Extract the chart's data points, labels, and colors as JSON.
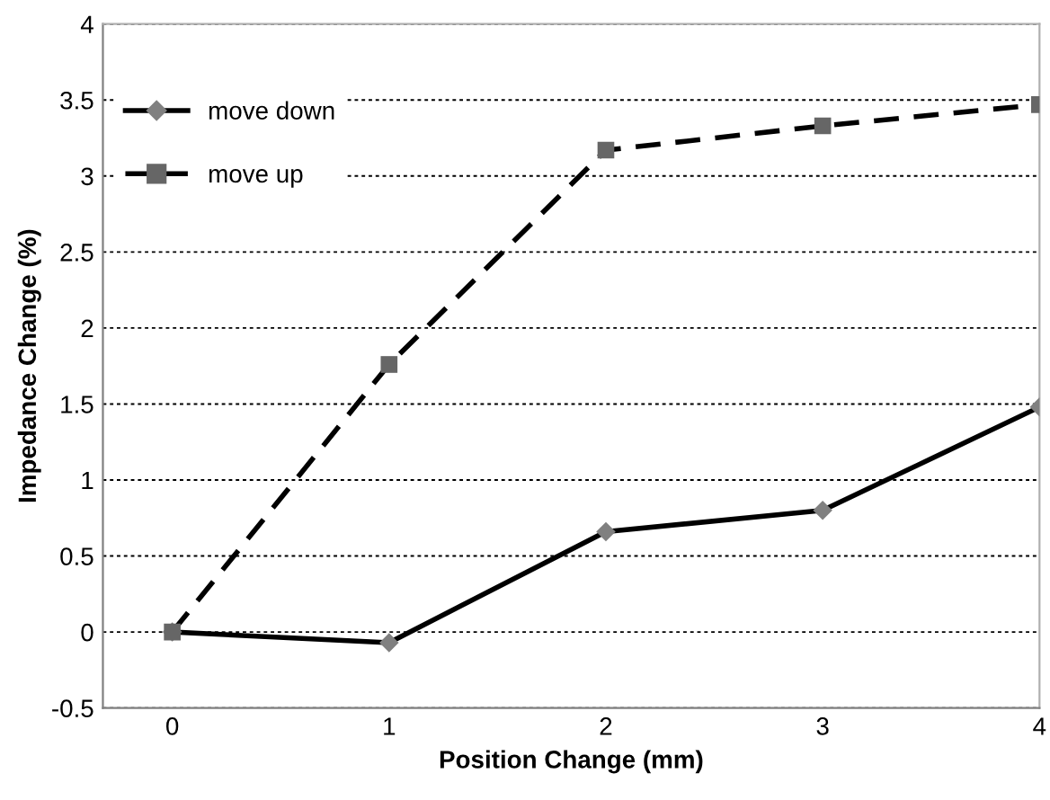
{
  "chart_data": {
    "type": "line",
    "xlabel": "Position Change (mm)",
    "ylabel": "Impedance Change (%)",
    "x": [
      0,
      1,
      2,
      3,
      4
    ],
    "series": [
      {
        "name": "move down",
        "color": "#000000",
        "colors": [
          "#808080",
          "#808080",
          "#808080",
          "#808080",
          "#808080"
        ],
        "marker": "diamond",
        "line_style": "solid",
        "values": [
          0,
          -0.07,
          0.66,
          0.8,
          1.48
        ]
      },
      {
        "name": "move up",
        "color": "#000000",
        "colors": [
          "#666666",
          "#666666",
          "#666666",
          "#666666",
          "#666666"
        ],
        "marker": "square",
        "line_style": "dashed",
        "values": [
          0,
          1.76,
          3.17,
          3.33,
          3.47
        ]
      }
    ],
    "xlim": [
      -0.32,
      4
    ],
    "xticks": [
      0,
      1,
      2,
      3,
      4
    ],
    "ylim": [
      -0.5,
      4
    ],
    "yticks": [
      -0.5,
      0,
      0.5,
      1,
      1.5,
      2,
      2.5,
      3,
      3.5,
      4
    ],
    "grid": "y",
    "legend": "top left"
  }
}
